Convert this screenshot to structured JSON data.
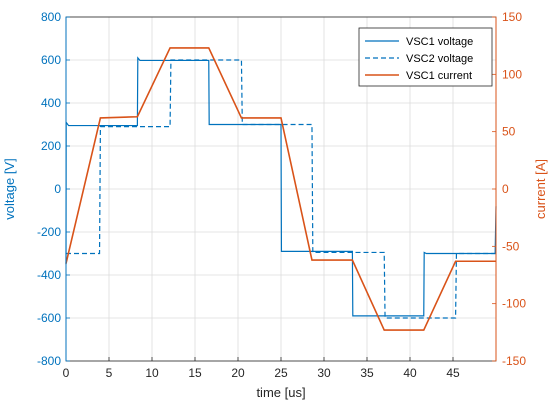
{
  "chart_data": {
    "type": "line",
    "title": "",
    "xlabel": "time [us]",
    "ylabel_left": "voltage [V]",
    "ylabel_right": "current [A]",
    "xlim": [
      0,
      50
    ],
    "ylim_left": [
      -800,
      800
    ],
    "ylim_right": [
      -150,
      150
    ],
    "xticks": [
      0,
      5,
      10,
      15,
      20,
      25,
      30,
      35,
      40,
      45
    ],
    "xtick_labels": [
      "0",
      "5",
      "10",
      "15",
      "20",
      "25",
      "30",
      "35",
      "40",
      "45"
    ],
    "yticks_left": [
      -800,
      -600,
      -400,
      -200,
      0,
      200,
      400,
      600,
      800
    ],
    "ytick_labels_left": [
      "-800",
      "-600",
      "-400",
      "-200",
      "0",
      "200",
      "400",
      "600",
      "800"
    ],
    "yticks_right": [
      -150,
      -100,
      -50,
      0,
      50,
      100,
      150
    ],
    "ytick_labels_right": [
      "-150",
      "-100",
      "-50",
      "0",
      "50",
      "100",
      "150"
    ],
    "grid": true,
    "legend_position": "top-right",
    "colors": {
      "voltage_axis": "#0072bd",
      "current_axis": "#d95319",
      "grid": "#dcdcdc",
      "frame": "#262626"
    },
    "series": [
      {
        "name": "VSC1 voltage",
        "axis": "left",
        "color": "#0072bd",
        "style": "solid",
        "x": [
          0,
          0.02,
          0.3,
          8.3,
          8.35,
          8.6,
          16.6,
          16.65,
          16.9,
          25,
          25.05,
          25.3,
          33.3,
          33.35,
          33.6,
          41.6,
          41.65,
          41.9,
          49.9,
          50
        ],
        "y": [
          -350,
          310,
          295,
          295,
          610,
          598,
          598,
          300,
          300,
          300,
          -290,
          -290,
          -290,
          -590,
          -590,
          -590,
          -295,
          -300,
          -300,
          -80
        ]
      },
      {
        "name": "VSC2 voltage",
        "axis": "left",
        "color": "#0072bd",
        "style": "dashed",
        "x": [
          0,
          3.9,
          4.0,
          12.1,
          12.2,
          20.4,
          20.5,
          28.6,
          28.7,
          37.0,
          37.1,
          45.3,
          45.4,
          50
        ],
        "y": [
          -300,
          -300,
          290,
          290,
          600,
          600,
          300,
          300,
          -295,
          -295,
          -600,
          -600,
          -300,
          -300
        ]
      },
      {
        "name": "VSC1 current",
        "axis": "right",
        "color": "#d95319",
        "style": "solid",
        "x": [
          0,
          4.0,
          8.3,
          12.1,
          16.6,
          20.4,
          25.0,
          28.6,
          33.3,
          37.0,
          41.6,
          45.3,
          50
        ],
        "y": [
          -65,
          62,
          63,
          123,
          123,
          62,
          62,
          -62,
          -62,
          -123,
          -123,
          -63,
          -63
        ]
      }
    ]
  }
}
